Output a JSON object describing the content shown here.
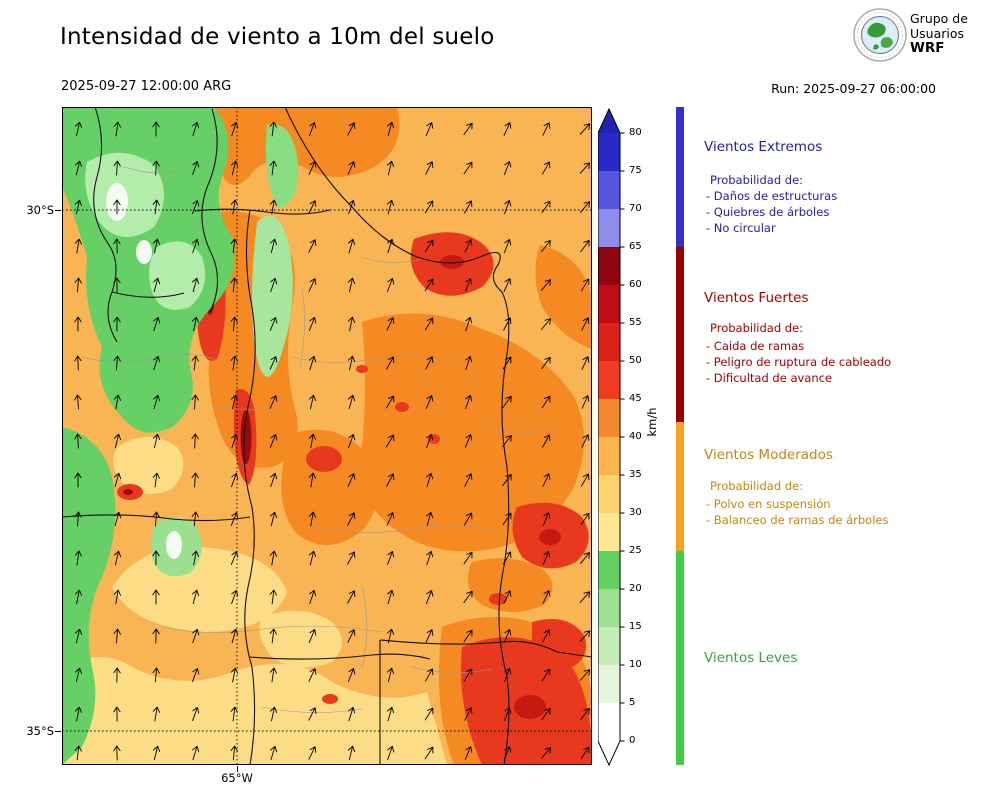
{
  "header": {
    "title": "Intensidad de viento a 10m del suelo",
    "valid_time": "2025-09-27 12:00:00 ARG",
    "run": "Run: 2025-09-27 06:00:00",
    "logo": {
      "line1": "Grupo de",
      "line2": "Usuarios",
      "acronym": "WRF"
    }
  },
  "map": {
    "lat_labels": [
      "30°S",
      "35°S"
    ],
    "lon_label": "65°W"
  },
  "colorbar": {
    "unit": "km/h",
    "tick_labels": [
      "0",
      "5",
      "10",
      "15",
      "20",
      "25",
      "30",
      "35",
      "40",
      "45",
      "50",
      "55",
      "60",
      "65",
      "70",
      "75",
      "80"
    ],
    "segment_colors": [
      "#ffffff",
      "#e3f6dc",
      "#c4ecb6",
      "#9ce091",
      "#63cf63",
      "#fee992",
      "#fed36e",
      "#fdb54d",
      "#f58a2c",
      "#ee3b22",
      "#dd2019",
      "#c00d15",
      "#8f0610",
      "#8d8dea",
      "#5555dd",
      "#2929c8"
    ],
    "arrow_top_color": "#2222b4",
    "arrow_bottom_color": "#ffffff"
  },
  "legend": {
    "strip_colors": [
      "#44cc44",
      "#f5a01e",
      "#990000",
      "#3333cc"
    ],
    "categories": [
      {
        "name": "Vientos Extremos",
        "color": "#2222aa",
        "prob": "Probabilidad de:",
        "items": [
          "- Daños de estructuras",
          "- Quiebres de árboles",
          "- No circular"
        ]
      },
      {
        "name": "Vientos Fuertes",
        "color": "#aa0000",
        "prob": "Probabilidad de:",
        "items": [
          "- Caida de ramas",
          "- Peligro de ruptura de cableado",
          "- Dificultad de avance"
        ]
      },
      {
        "name": "Vientos Moderados",
        "color": "#c8860a",
        "prob": "Probabilidad de:",
        "items": [
          "- Polvo en suspensión",
          "- Balanceo de ramas de árboles"
        ]
      },
      {
        "name": "Vientos Leves",
        "color": "#3fa03f",
        "prob": "",
        "items": []
      }
    ]
  }
}
